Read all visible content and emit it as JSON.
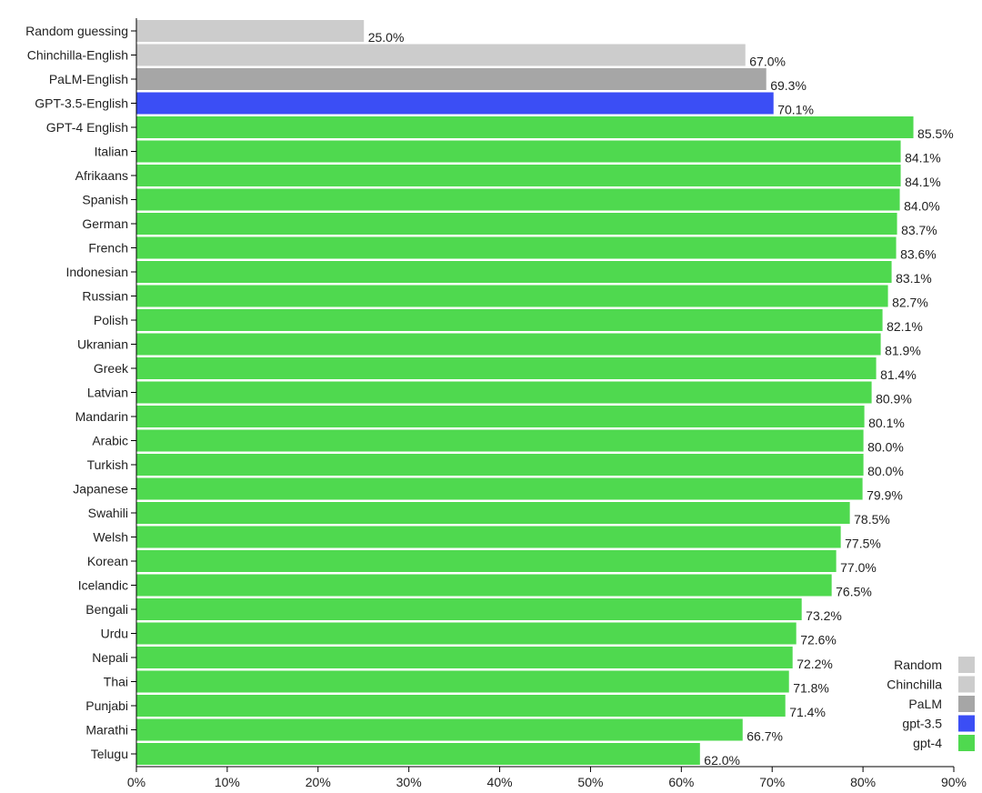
{
  "chart_data": {
    "type": "bar",
    "orientation": "horizontal",
    "title": "",
    "xlabel": "",
    "ylabel": "",
    "xlim": [
      0,
      90
    ],
    "x_ticks": [
      "0%",
      "10%",
      "20%",
      "30%",
      "40%",
      "50%",
      "60%",
      "70%",
      "80%",
      "90%"
    ],
    "value_suffix": "%",
    "grid": false,
    "legend_position": "bottom-right",
    "categories": [
      "Random guessing",
      "Chinchilla-English",
      "PaLM-English",
      "GPT-3.5-English",
      "GPT-4 English",
      "Italian",
      "Afrikaans",
      "Spanish",
      "German",
      "French",
      "Indonesian",
      "Russian",
      "Polish",
      "Ukranian",
      "Greek",
      "Latvian",
      "Mandarin",
      "Arabic",
      "Turkish",
      "Japanese",
      "Swahili",
      "Welsh",
      "Korean",
      "Icelandic",
      "Bengali",
      "Urdu",
      "Nepali",
      "Thai",
      "Punjabi",
      "Marathi",
      "Telugu"
    ],
    "values": [
      25.0,
      67.0,
      69.3,
      70.1,
      85.5,
      84.1,
      84.1,
      84.0,
      83.7,
      83.6,
      83.1,
      82.7,
      82.1,
      81.9,
      81.4,
      80.9,
      80.1,
      80.0,
      80.0,
      79.9,
      78.5,
      77.5,
      77.0,
      76.5,
      73.2,
      72.6,
      72.2,
      71.8,
      71.4,
      66.7,
      62.0
    ],
    "value_labels": [
      "25.0%",
      "67.0%",
      "69.3%",
      "70.1%",
      "85.5%",
      "84.1%",
      "84.1%",
      "84.0%",
      "83.7%",
      "83.6%",
      "83.1%",
      "82.7%",
      "82.1%",
      "81.9%",
      "81.4%",
      "80.9%",
      "80.1%",
      "80.0%",
      "80.0%",
      "79.9%",
      "78.5%",
      "77.5%",
      "77.0%",
      "76.5%",
      "73.2%",
      "72.6%",
      "72.2%",
      "71.8%",
      "71.4%",
      "66.7%",
      "62.0%"
    ],
    "groups": [
      "Random",
      "Chinchilla",
      "PaLM",
      "gpt-3.5",
      "gpt-4",
      "gpt-4",
      "gpt-4",
      "gpt-4",
      "gpt-4",
      "gpt-4",
      "gpt-4",
      "gpt-4",
      "gpt-4",
      "gpt-4",
      "gpt-4",
      "gpt-4",
      "gpt-4",
      "gpt-4",
      "gpt-4",
      "gpt-4",
      "gpt-4",
      "gpt-4",
      "gpt-4",
      "gpt-4",
      "gpt-4",
      "gpt-4",
      "gpt-4",
      "gpt-4",
      "gpt-4",
      "gpt-4",
      "gpt-4"
    ],
    "legend": [
      {
        "name": "Random",
        "color": "#cccccc"
      },
      {
        "name": "Chinchilla",
        "color": "#cccccc"
      },
      {
        "name": "PaLM",
        "color": "#a6a6a6"
      },
      {
        "name": "gpt-3.5",
        "color": "#3b4ef5"
      },
      {
        "name": "gpt-4",
        "color": "#4fd94f"
      }
    ]
  }
}
